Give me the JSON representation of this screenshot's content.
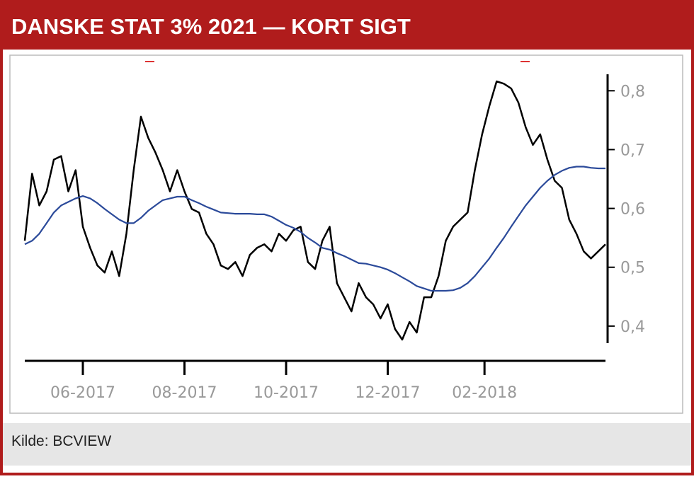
{
  "chart_data": {
    "type": "line",
    "title": "DANSKE STAT 3% 2021 — KORT SIGT",
    "source": "Kilde: BCVIEW",
    "x": [
      0,
      3,
      6,
      9,
      12,
      15,
      18,
      21,
      24,
      27,
      30,
      33,
      36,
      39,
      42,
      45,
      48,
      51,
      54,
      57,
      60,
      63,
      66,
      69,
      72,
      75,
      78,
      81,
      84,
      87,
      90,
      93,
      96,
      99,
      102,
      105,
      108,
      111,
      114,
      117,
      120,
      123,
      126,
      129,
      132,
      135,
      138,
      141,
      144,
      147,
      150,
      153,
      156,
      159,
      162,
      165,
      168,
      171,
      174,
      177,
      180,
      183,
      186,
      189,
      192,
      195,
      198,
      201,
      204,
      207,
      210,
      213,
      216,
      219,
      222,
      225,
      228,
      231,
      234,
      237,
      240
    ],
    "series": [
      {
        "color": "#000000",
        "values": [
          0.545,
          0.659,
          0.605,
          0.629,
          0.683,
          0.689,
          0.629,
          0.665,
          0.569,
          0.533,
          0.503,
          0.491,
          0.527,
          0.485,
          0.557,
          0.665,
          0.756,
          0.72,
          0.695,
          0.665,
          0.629,
          0.665,
          0.629,
          0.599,
          0.593,
          0.557,
          0.539,
          0.503,
          0.497,
          0.509,
          0.485,
          0.521,
          0.533,
          0.539,
          0.527,
          0.557,
          0.545,
          0.563,
          0.569,
          0.509,
          0.497,
          0.545,
          0.569,
          0.473,
          0.449,
          0.425,
          0.473,
          0.449,
          0.437,
          0.413,
          0.437,
          0.395,
          0.377,
          0.407,
          0.389,
          0.449,
          0.449,
          0.485,
          0.545,
          0.569,
          0.581,
          0.593,
          0.665,
          0.726,
          0.774,
          0.816,
          0.812,
          0.804,
          0.78,
          0.738,
          0.708,
          0.726,
          0.683,
          0.647,
          0.635,
          0.581,
          0.557,
          0.527,
          0.515,
          0.527,
          0.539
        ]
      },
      {
        "color": "#2b4a9a",
        "values": [
          0.539,
          0.545,
          0.557,
          0.575,
          0.593,
          0.605,
          0.611,
          0.617,
          0.621,
          0.617,
          0.609,
          0.599,
          0.59,
          0.581,
          0.575,
          0.575,
          0.584,
          0.596,
          0.605,
          0.614,
          0.617,
          0.62,
          0.62,
          0.614,
          0.609,
          0.603,
          0.598,
          0.593,
          0.592,
          0.591,
          0.591,
          0.591,
          0.59,
          0.59,
          0.586,
          0.579,
          0.572,
          0.567,
          0.56,
          0.55,
          0.542,
          0.533,
          0.53,
          0.524,
          0.519,
          0.513,
          0.507,
          0.506,
          0.503,
          0.5,
          0.496,
          0.49,
          0.483,
          0.476,
          0.468,
          0.464,
          0.46,
          0.46,
          0.46,
          0.461,
          0.465,
          0.473,
          0.485,
          0.5,
          0.515,
          0.533,
          0.55,
          0.569,
          0.587,
          0.605,
          0.62,
          0.635,
          0.647,
          0.657,
          0.664,
          0.669,
          0.671,
          0.671,
          0.669,
          0.668,
          0.668
        ]
      }
    ],
    "xlim": [
      0,
      240
    ],
    "xticks": [
      {
        "value": 24,
        "label": "06-2017"
      },
      {
        "value": 66,
        "label": "08-2017"
      },
      {
        "value": 108,
        "label": "10-2017"
      },
      {
        "value": 150,
        "label": "12-2017"
      },
      {
        "value": 190,
        "label": "02-2018"
      }
    ],
    "ylim": [
      0.371,
      0.828
    ],
    "yticks": [
      {
        "value": 0.4,
        "label": "0,4"
      },
      {
        "value": 0.5,
        "label": "0,5"
      },
      {
        "value": 0.6,
        "label": "0,6"
      },
      {
        "value": 0.7,
        "label": "0,7"
      },
      {
        "value": 0.8,
        "label": "0,8"
      }
    ],
    "y_axis_side": "right"
  }
}
